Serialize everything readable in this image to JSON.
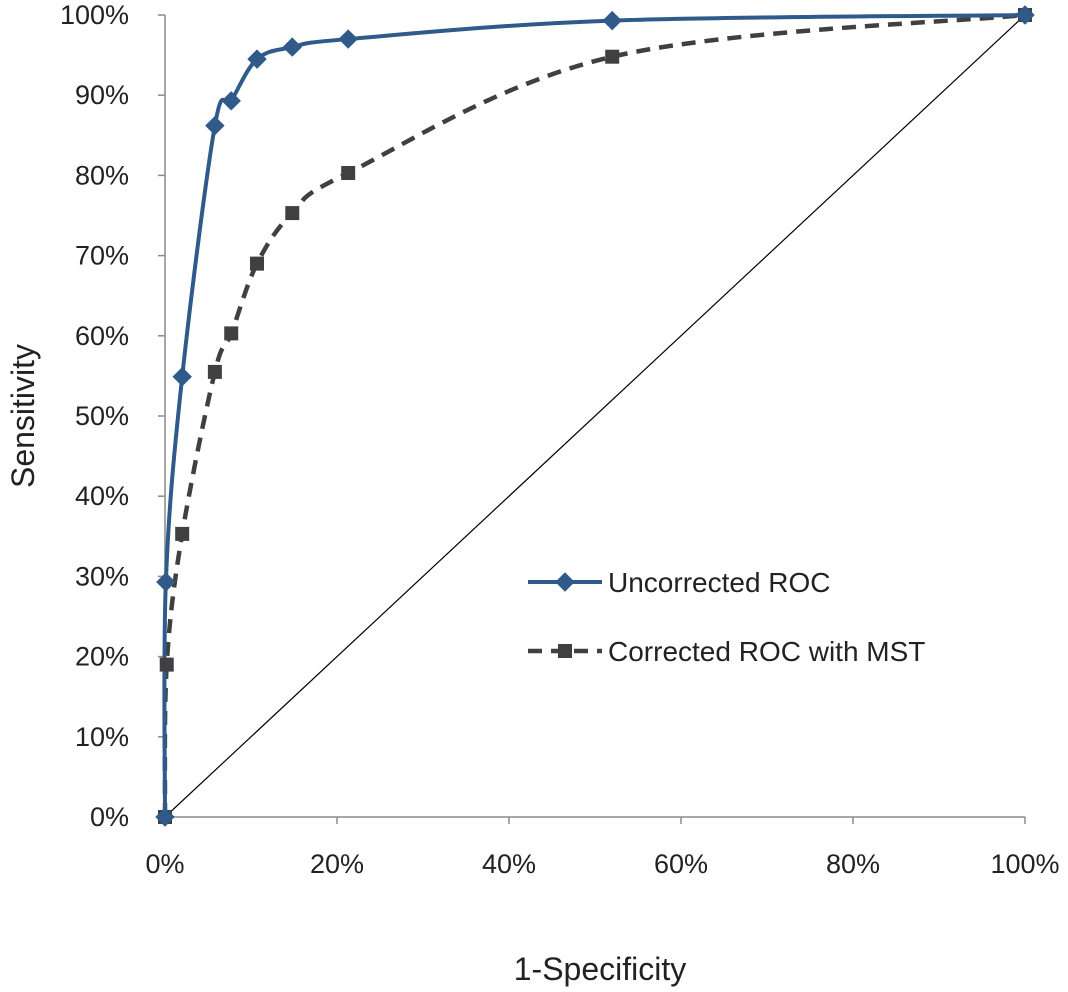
{
  "chart_data": {
    "type": "line",
    "title": "",
    "xlabel": "1-Specificity",
    "ylabel": "Sensitivity",
    "xlim": [
      0,
      100
    ],
    "ylim": [
      0,
      100
    ],
    "x_ticks": [
      "0%",
      "20%",
      "40%",
      "60%",
      "80%",
      "100%"
    ],
    "y_ticks": [
      "0%",
      "10%",
      "20%",
      "30%",
      "40%",
      "50%",
      "60%",
      "70%",
      "80%",
      "90%",
      "100%"
    ],
    "grid": false,
    "legend_position": "middle-right",
    "reference_line": {
      "x": [
        0,
        100
      ],
      "y": [
        0,
        100
      ],
      "color": "#000000"
    },
    "series": [
      {
        "name": "Uncorrected ROC",
        "color": "#2f5a8a",
        "line_style": "solid",
        "marker": "diamond",
        "x": [
          0,
          0.1,
          2.0,
          5.8,
          7.7,
          10.7,
          14.8,
          21.3,
          52.0,
          100
        ],
        "y": [
          0,
          29.3,
          54.9,
          86.2,
          89.3,
          94.5,
          96.0,
          97.0,
          99.3,
          100
        ]
      },
      {
        "name": "Corrected ROC with MST",
        "color": "#404040",
        "line_style": "dashed",
        "marker": "square",
        "x": [
          0,
          0.2,
          2.0,
          5.8,
          7.7,
          10.7,
          14.8,
          21.3,
          52.0,
          100
        ],
        "y": [
          0,
          19.0,
          35.3,
          55.5,
          60.3,
          69.0,
          75.3,
          80.3,
          94.8,
          100
        ]
      }
    ]
  }
}
